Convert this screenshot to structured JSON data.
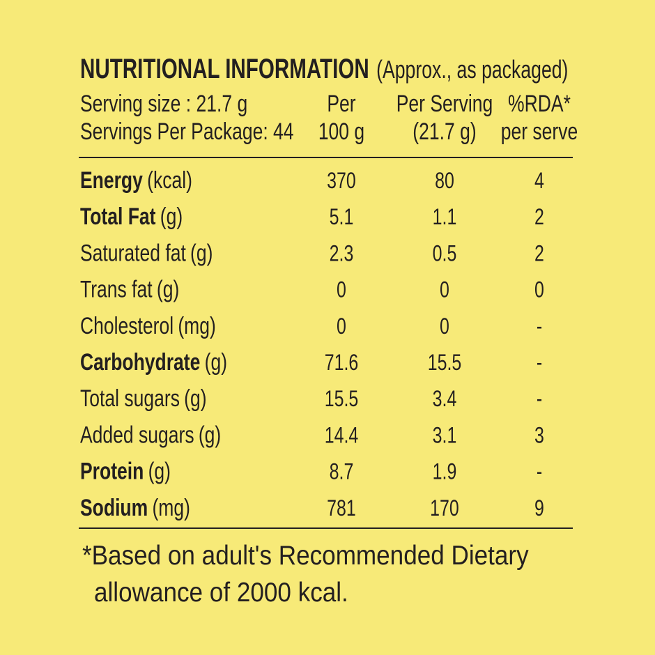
{
  "title": "NUTRITIONAL INFORMATION",
  "title_note": "(Approx., as packaged)",
  "serving_info": [
    "Serving size : 21.7 g",
    "Servings Per Package: 44"
  ],
  "columns": [
    [
      "Per",
      "100 g"
    ],
    [
      "Per Serving",
      "(21.7 g)"
    ],
    [
      "%RDA*",
      "per serve"
    ]
  ],
  "rows": [
    {
      "name": "Energy",
      "unit": "(kcal)",
      "bold": true,
      "values": [
        370,
        80,
        4
      ]
    },
    {
      "name": "Total Fat",
      "unit": "(g)",
      "bold": true,
      "values": [
        5.1,
        1.1,
        2
      ]
    },
    {
      "name": "Saturated fat",
      "unit": "(g)",
      "bold": false,
      "values": [
        2.3,
        0.5,
        2
      ]
    },
    {
      "name": "Trans fat",
      "unit": "(g)",
      "bold": false,
      "values": [
        0,
        0,
        0
      ]
    },
    {
      "name": "Cholesterol",
      "unit": "(mg)",
      "bold": false,
      "values": [
        0,
        0,
        "-"
      ]
    },
    {
      "name": "Carbohydrate",
      "unit": "(g)",
      "bold": true,
      "values": [
        71.6,
        15.5,
        "-"
      ]
    },
    {
      "name": "Total sugars",
      "unit": "(g)",
      "bold": false,
      "values": [
        15.5,
        3.4,
        "-"
      ]
    },
    {
      "name": "Added sugars",
      "unit": "(g)",
      "bold": false,
      "values": [
        14.4,
        3.1,
        3
      ]
    },
    {
      "name": "Protein",
      "unit": "(g)",
      "bold": true,
      "values": [
        8.7,
        1.9,
        "-"
      ]
    },
    {
      "name": "Sodium",
      "unit": "(mg)",
      "bold": true,
      "values": [
        781,
        170,
        9
      ]
    }
  ],
  "footnote": [
    "*Based on adult's Recommended Dietary",
    "allowance of 2000 kcal."
  ]
}
